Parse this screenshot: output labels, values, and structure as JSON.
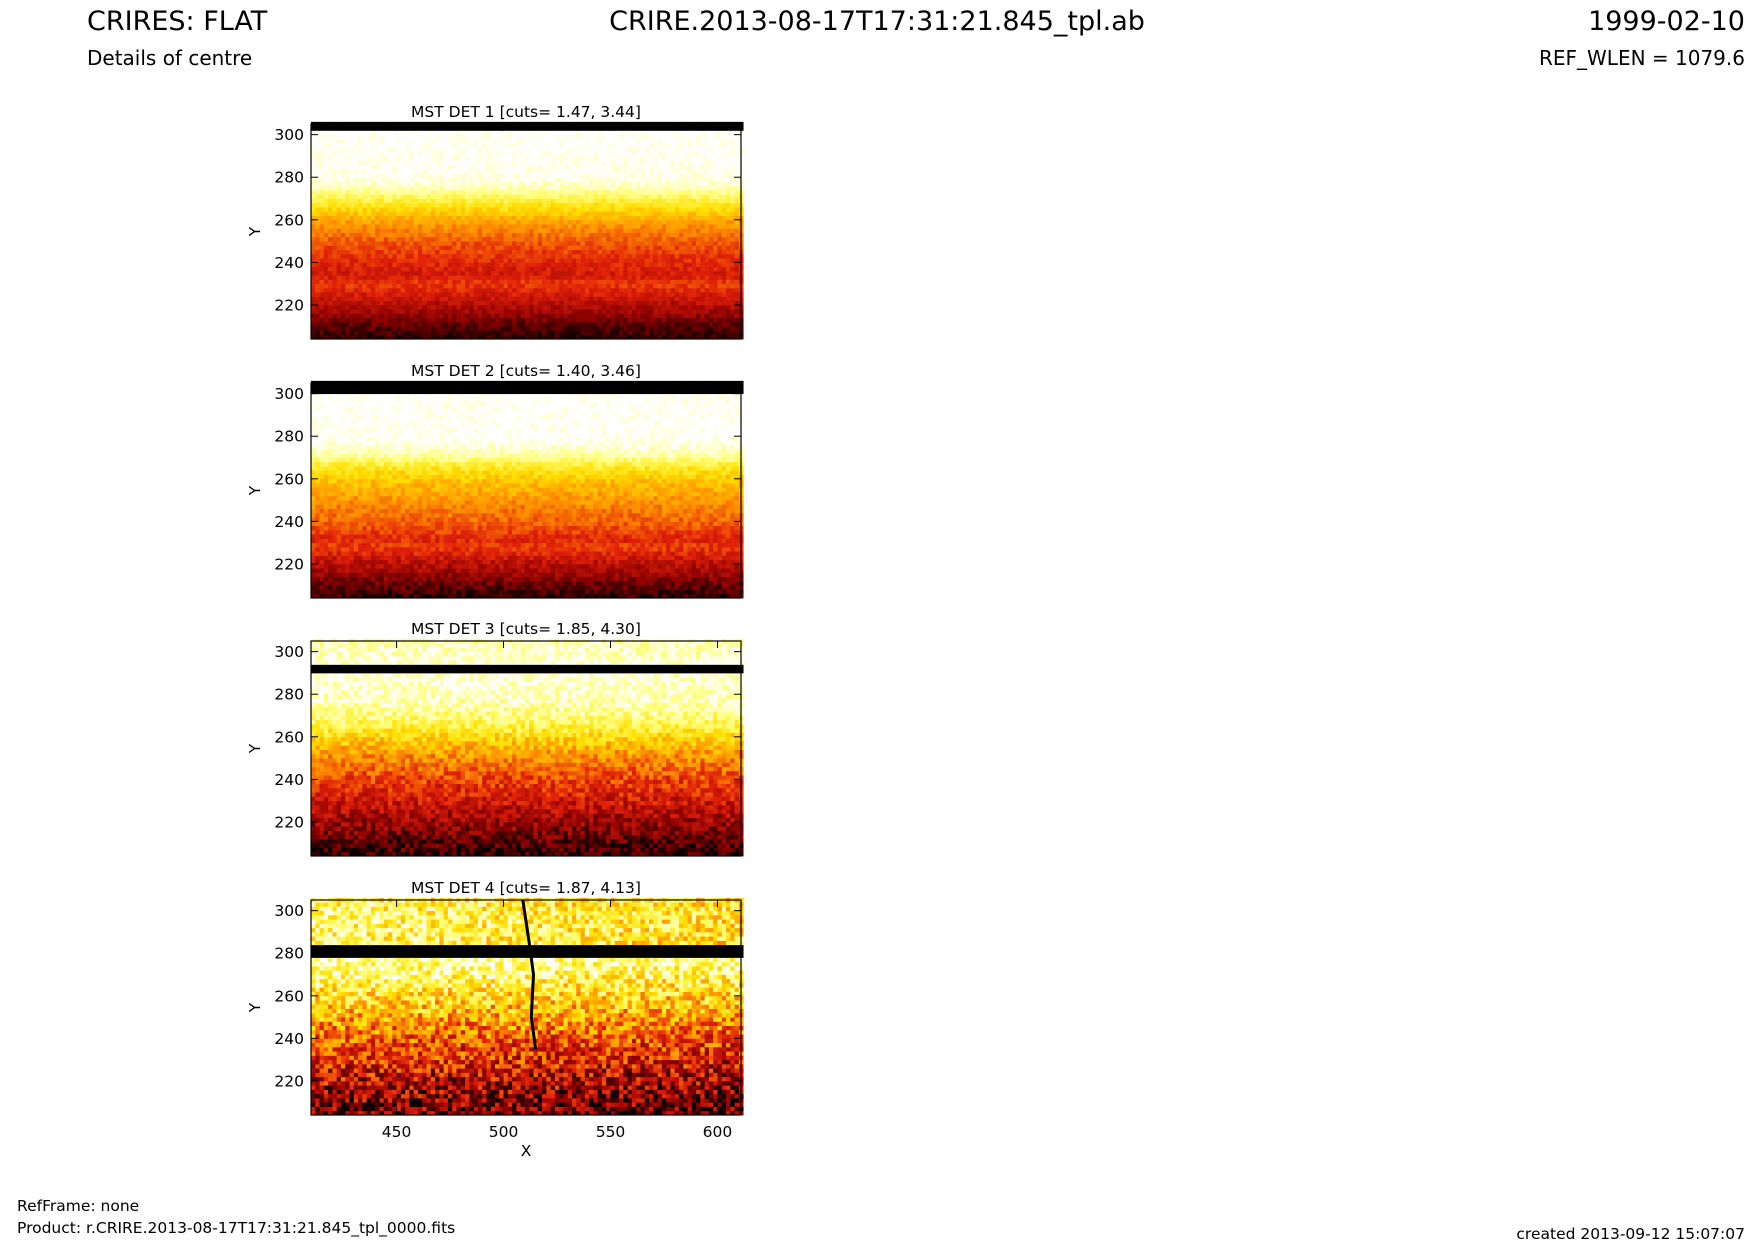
{
  "header": {
    "title_left": "CRIRES: FLAT",
    "subtitle_left": "Details of centre",
    "title_center": "CRIRE.2013-08-17T17:31:21.845_tpl.ab",
    "title_right": "1999-02-10",
    "subtitle_right": "REF_WLEN = 1079.6"
  },
  "footer": {
    "refframe": "RefFrame: none",
    "product": "Product: r.CRIRE.2013-08-17T17:31:21.845_tpl_0000.fits",
    "created": "created 2013-09-12 15:07:07"
  },
  "colors": {
    "colormap": "hot",
    "cmap_stops": [
      "#000000",
      "#8b0000",
      "#e0200a",
      "#ff8c00",
      "#ffe000",
      "#ffff80",
      "#ffffff"
    ]
  },
  "chart_data": [
    {
      "type": "heatmap",
      "title": "MST DET 1 [cuts= 1.47, 3.44]",
      "xlabel": "",
      "ylabel": "Y",
      "xlim": [
        410,
        611
      ],
      "ylim": [
        204,
        305
      ],
      "yticks": [
        220,
        240,
        260,
        280,
        300
      ],
      "xticks": [],
      "cuts": [
        1.47,
        3.44
      ],
      "black_bands": [
        [
          303,
          305
        ]
      ],
      "crack": null,
      "profile": [
        [
          204,
          0.05
        ],
        [
          210,
          0.1
        ],
        [
          218,
          0.22
        ],
        [
          226,
          0.32
        ],
        [
          230,
          0.38
        ],
        [
          234,
          0.3
        ],
        [
          240,
          0.34
        ],
        [
          250,
          0.42
        ],
        [
          258,
          0.52
        ],
        [
          262,
          0.6
        ],
        [
          268,
          0.72
        ],
        [
          272,
          0.82
        ],
        [
          276,
          0.93
        ],
        [
          280,
          0.98
        ],
        [
          302,
          1.0
        ]
      ],
      "noise": 0.05
    },
    {
      "type": "heatmap",
      "title": "MST DET 2 [cuts= 1.40, 3.46]",
      "xlabel": "",
      "ylabel": "Y",
      "xlim": [
        410,
        611
      ],
      "ylim": [
        204,
        305
      ],
      "yticks": [
        220,
        240,
        260,
        280,
        300
      ],
      "xticks": [],
      "cuts": [
        1.4,
        3.46
      ],
      "black_bands": [
        [
          301,
          305
        ]
      ],
      "crack": null,
      "profile": [
        [
          204,
          0.05
        ],
        [
          210,
          0.12
        ],
        [
          216,
          0.2
        ],
        [
          222,
          0.28
        ],
        [
          228,
          0.38
        ],
        [
          232,
          0.34
        ],
        [
          238,
          0.42
        ],
        [
          246,
          0.48
        ],
        [
          254,
          0.56
        ],
        [
          260,
          0.62
        ],
        [
          266,
          0.72
        ],
        [
          270,
          0.86
        ],
        [
          276,
          0.96
        ],
        [
          280,
          1.0
        ],
        [
          300,
          1.0
        ]
      ],
      "noise": 0.06
    },
    {
      "type": "heatmap",
      "title": "MST DET 3 [cuts= 1.85, 4.30]",
      "xlabel": "",
      "ylabel": "Y",
      "xlim": [
        410,
        611
      ],
      "ylim": [
        204,
        305
      ],
      "yticks": [
        220,
        240,
        260,
        280,
        300
      ],
      "xticks": [],
      "cuts": [
        1.85,
        4.3
      ],
      "black_bands": [
        [
          290,
          293
        ]
      ],
      "crack": null,
      "profile": [
        [
          204,
          0.05
        ],
        [
          212,
          0.12
        ],
        [
          220,
          0.2
        ],
        [
          228,
          0.28
        ],
        [
          236,
          0.35
        ],
        [
          244,
          0.43
        ],
        [
          252,
          0.53
        ],
        [
          258,
          0.62
        ],
        [
          264,
          0.74
        ],
        [
          270,
          0.84
        ],
        [
          276,
          0.9
        ],
        [
          282,
          0.93
        ],
        [
          288,
          0.95
        ],
        [
          294,
          0.95
        ],
        [
          305,
          0.9
        ]
      ],
      "noise": 0.1
    },
    {
      "type": "heatmap",
      "title": "MST DET 4 [cuts= 1.87, 4.13]",
      "xlabel": "X",
      "ylabel": "Y",
      "xlim": [
        410,
        611
      ],
      "ylim": [
        204,
        305
      ],
      "yticks": [
        220,
        240,
        260,
        280,
        300
      ],
      "xticks": [
        450,
        500,
        550,
        600
      ],
      "cuts": [
        1.87,
        4.13
      ],
      "black_bands": [
        [
          279,
          283
        ]
      ],
      "crack": [
        [
          509,
          305
        ],
        [
          512,
          285
        ],
        [
          514,
          270
        ],
        [
          513,
          250
        ],
        [
          515,
          235
        ]
      ],
      "profile": [
        [
          204,
          0.15
        ],
        [
          214,
          0.22
        ],
        [
          224,
          0.3
        ],
        [
          234,
          0.4
        ],
        [
          244,
          0.5
        ],
        [
          254,
          0.62
        ],
        [
          264,
          0.74
        ],
        [
          272,
          0.86
        ],
        [
          278,
          0.9
        ],
        [
          284,
          0.8
        ],
        [
          294,
          0.82
        ],
        [
          305,
          0.8
        ]
      ],
      "noise": 0.2
    }
  ]
}
